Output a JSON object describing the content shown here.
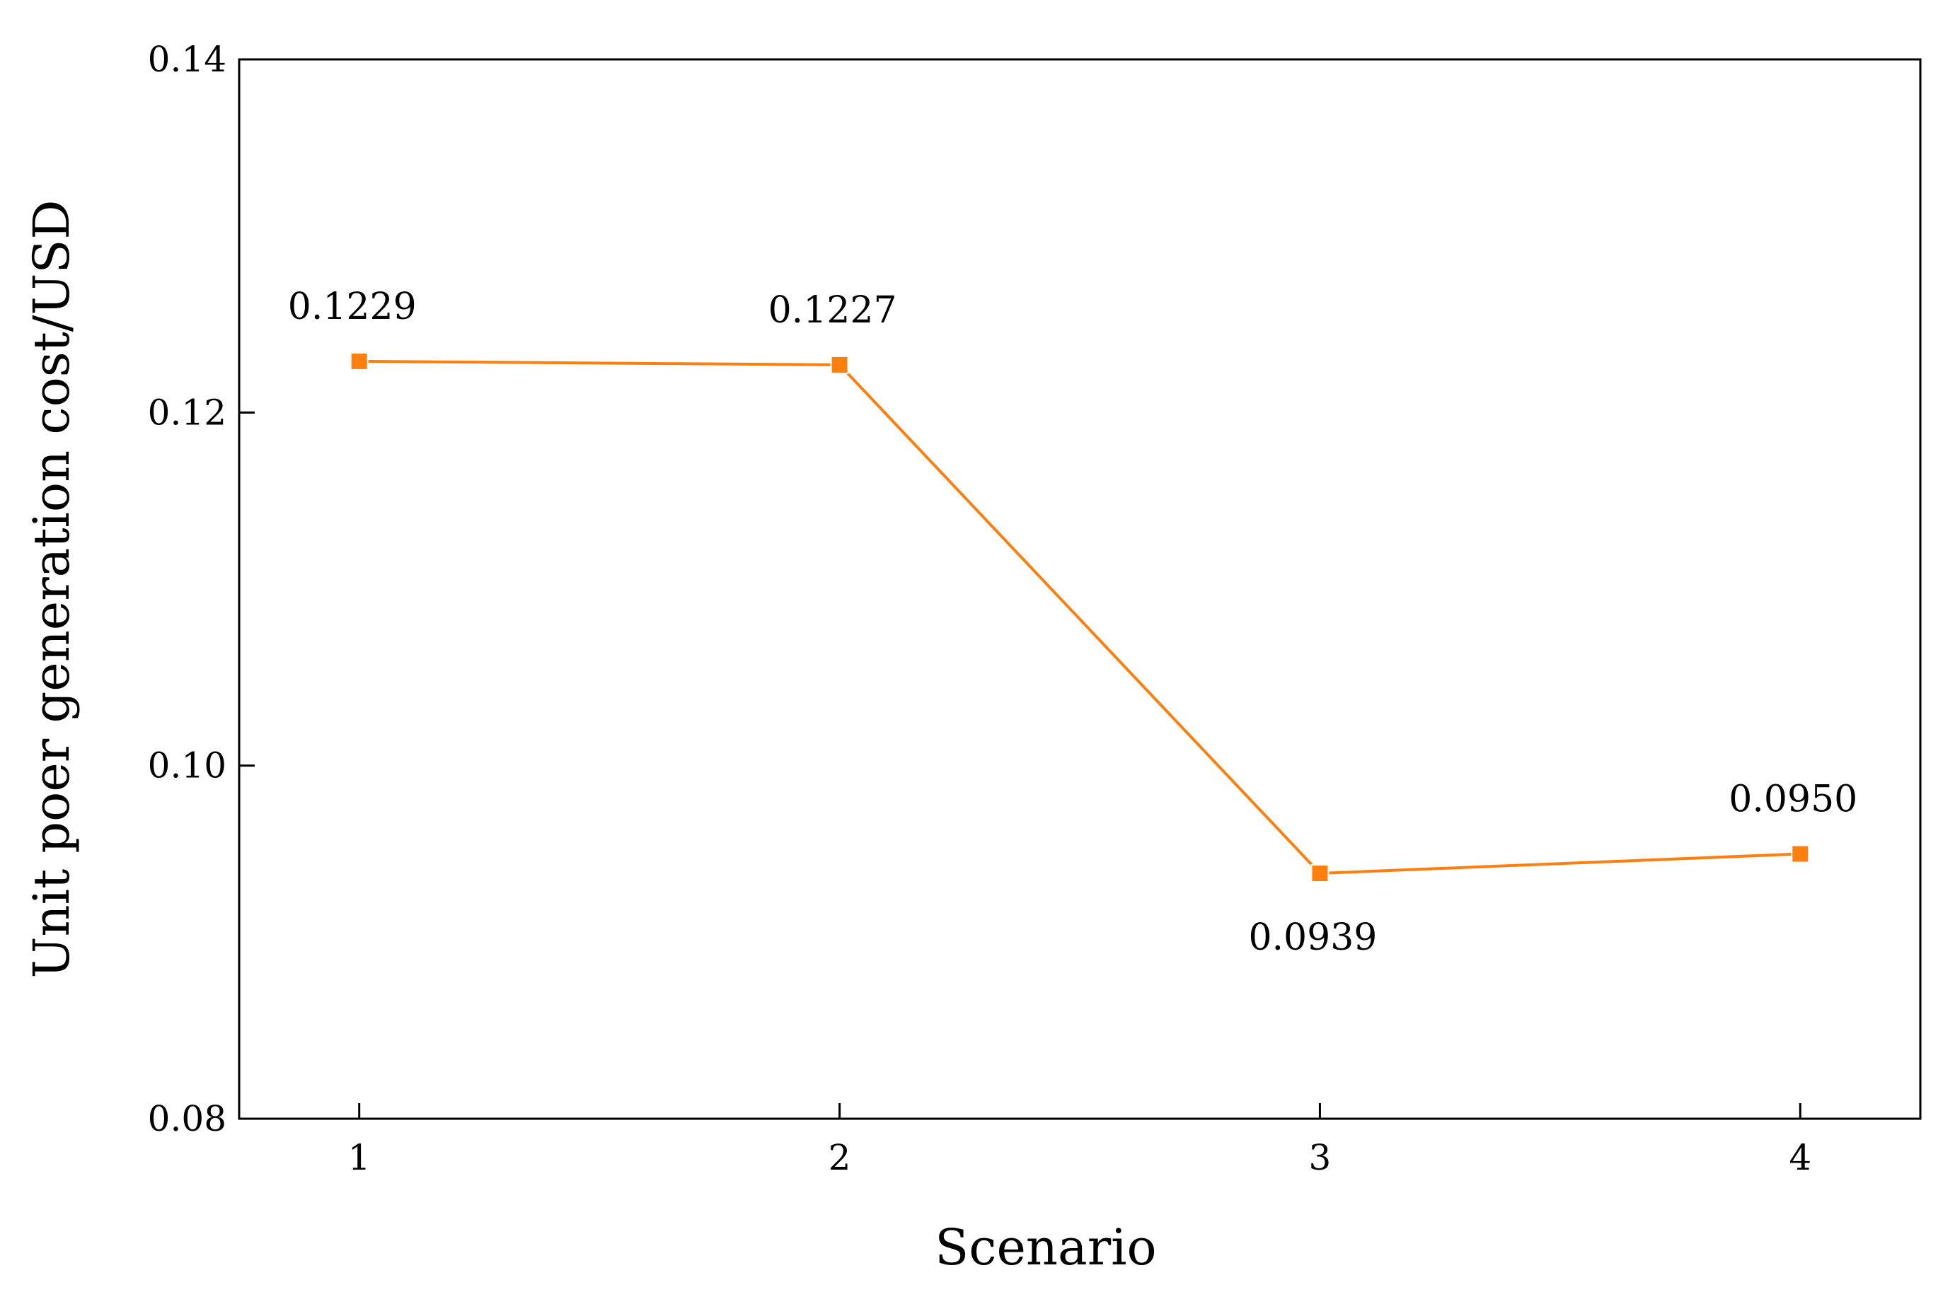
{
  "chart_data": {
    "type": "line",
    "title": "",
    "xlabel": "Scenario",
    "ylabel": "Unit poer generation cost/USD",
    "categories": [
      "1",
      "2",
      "3",
      "4"
    ],
    "x": [
      1,
      2,
      3,
      4
    ],
    "series": [
      {
        "values": [
          0.1229,
          0.1227,
          0.0939,
          0.095
        ],
        "labels": [
          "0.1229",
          "0.1227",
          "0.0939",
          "0.0950"
        ],
        "color": "#ff7f0e",
        "marker": "square"
      }
    ],
    "xlim": [
      0.75,
      4.25
    ],
    "ylim": [
      0.08,
      0.14
    ],
    "yticks": [
      0.08,
      0.1,
      0.12,
      0.14
    ],
    "ytick_labels": [
      "0.08",
      "0.10",
      "0.12",
      "0.14"
    ],
    "grid": false,
    "legend": "none"
  }
}
